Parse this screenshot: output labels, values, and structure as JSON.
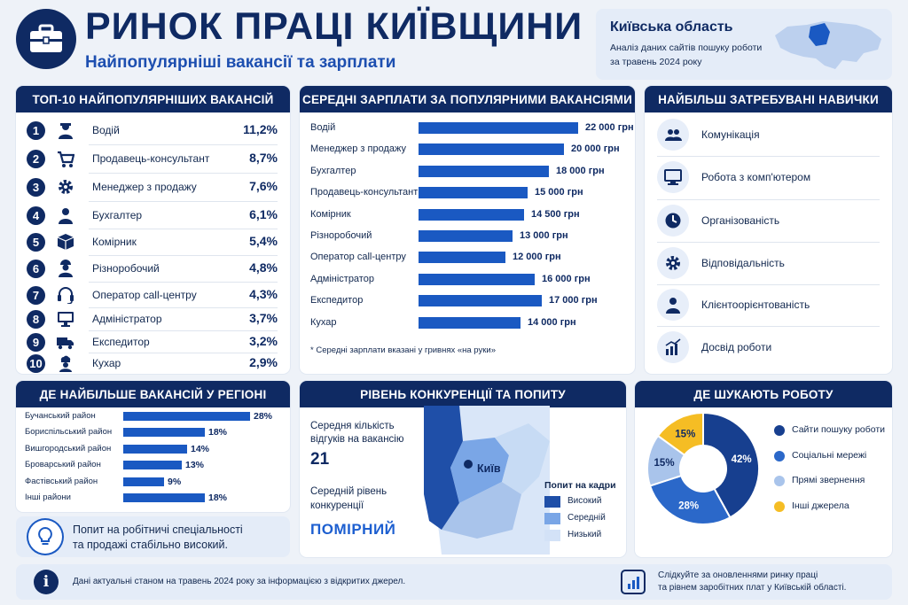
{
  "header": {
    "title": "РИНОК ПРАЦІ КИЇВЩИНИ",
    "subtitle": "Найпопулярніші вакансії та зарплати"
  },
  "region": {
    "name": "Київська область",
    "line1": "Аналіз даних сайтів пошуку роботи",
    "line2": "за травень 2024 року"
  },
  "top10": {
    "title": "ТОП-10 НАЙПОПУЛЯРНІШИХ ВАКАНСІЙ",
    "items": [
      {
        "n": "1",
        "label": "Водій",
        "pct": "11,2%",
        "icon": "driver-icon"
      },
      {
        "n": "2",
        "label": "Продавець-консультант",
        "pct": "8,7%",
        "icon": "cart-icon"
      },
      {
        "n": "3",
        "label": "Менеджер з продажу",
        "pct": "7,6%",
        "icon": "gear-icon"
      },
      {
        "n": "4",
        "label": "Бухгалтер",
        "pct": "6,1%",
        "icon": "person-icon"
      },
      {
        "n": "5",
        "label": "Комірник",
        "pct": "5,4%",
        "icon": "box-icon"
      },
      {
        "n": "6",
        "label": "Різноробочий",
        "pct": "4,8%",
        "icon": "worker-icon"
      },
      {
        "n": "7",
        "label": "Оператор call-центру",
        "pct": "4,3%",
        "icon": "headset-icon"
      },
      {
        "n": "8",
        "label": "Адміністратор",
        "pct": "3,7%",
        "icon": "monitor-icon"
      },
      {
        "n": "9",
        "label": "Експедитор",
        "pct": "3,2%",
        "icon": "truck-icon"
      },
      {
        "n": "10",
        "label": "Кухар",
        "pct": "2,9%",
        "icon": "chef-icon"
      }
    ]
  },
  "salaries": {
    "title": "СЕРЕДНІ ЗАРПЛАТИ ЗА ПОПУЛЯРНИМИ ВАКАНСІЯМИ",
    "note": "* Середні зарплати вказані у гривнях «на руки»"
  },
  "skills": {
    "title": "НАЙБІЛЬШ ЗАТРЕБУВАНІ НАВИЧКИ",
    "items": [
      {
        "label": "Комунікація",
        "icon": "people-icon"
      },
      {
        "label": "Робота з комп'ютером",
        "icon": "computer-icon"
      },
      {
        "label": "Організованість",
        "icon": "clock-icon"
      },
      {
        "label": "Відповідальність",
        "icon": "gear-icon"
      },
      {
        "label": "Клієнтоорієнтованість",
        "icon": "person-icon"
      },
      {
        "label": "Досвід роботи",
        "icon": "chart-icon"
      }
    ]
  },
  "districts": {
    "title": "ДЕ НАЙБІЛЬШЕ ВАКАНСІЙ У РЕГІОНІ"
  },
  "tip": {
    "line1": "Попит на робітничі спеціальності",
    "line2": "та продажі стабільно високий."
  },
  "competition": {
    "title": "РІВЕНЬ КОНКУРЕНЦІЇ ТА ПОПИТУ",
    "resp_label1": "Середня кількість",
    "resp_label2": "відгуків на вакансію",
    "resp_value": "21",
    "comp_label1": "Середній рівень",
    "comp_label2": "конкуренції",
    "comp_value": "ПОМІРНИЙ",
    "city": "Київ",
    "legend_title": "Попит на кадри",
    "legend": [
      {
        "label": "Високий",
        "color": "#1f4fa8"
      },
      {
        "label": "Середній",
        "color": "#7aa6e6"
      },
      {
        "label": "Низький",
        "color": "#d3e2f7"
      }
    ]
  },
  "search": {
    "title": "ДЕ ШУКАЮТЬ РОБОТУ"
  },
  "footer": {
    "info": "Дані актуальні станом на травень 2024 року за інформацією з відкритих джерел.",
    "follow1": "Слідкуйте за оновленнями ринку праці",
    "follow2": "та рівнем заробітних плат у Київській області."
  },
  "chart_data": [
    {
      "type": "bar",
      "orientation": "horizontal",
      "unit": "грн",
      "categories": [
        "Водій",
        "Менеджер з продажу",
        "Бухгалтер",
        "Продавець-консультант",
        "Комірник",
        "Різноробочий",
        "Оператор call-центру",
        "Адміністратор",
        "Експедитор",
        "Кухар"
      ],
      "values": [
        22000,
        20000,
        18000,
        15000,
        14500,
        13000,
        12000,
        16000,
        17000,
        14000
      ],
      "labels": [
        "22 000 грн",
        "20 000 грн",
        "18 000 грн",
        "15 000 грн",
        "14 500 грн",
        "13 000 грн",
        "12 000 грн",
        "16 000 грн",
        "17 000 грн",
        "14 000 грн"
      ],
      "title": "СЕРЕДНІ ЗАРПЛАТИ ЗА ПОПУЛЯРНИМИ ВАКАНСІЯМИ"
    },
    {
      "type": "bar",
      "orientation": "horizontal",
      "categories": [
        "Бучанський район",
        "Бориспільський район",
        "Вишгородський район",
        "Броварський район",
        "Фастівський район",
        "Інші райони"
      ],
      "values": [
        28,
        18,
        14,
        13,
        9,
        18
      ],
      "labels": [
        "28%",
        "18%",
        "14%",
        "13%",
        "9%",
        "18%"
      ],
      "title": "ДЕ НАЙБІЛЬШЕ ВАКАНСІЙ У РЕГІОНІ"
    },
    {
      "type": "pie",
      "donut": true,
      "categories": [
        "Сайти пошуку роботи",
        "Соціальні мережі",
        "Прямі звернення",
        "Інші джерела"
      ],
      "values": [
        42,
        28,
        15,
        15
      ],
      "labels": [
        "42%",
        "28%",
        "15%",
        "15%"
      ],
      "colors": [
        "#173f8f",
        "#2b68c9",
        "#a9c4eb",
        "#f5bd24"
      ],
      "title": "ДЕ ШУКАЮТЬ РОБОТУ"
    }
  ]
}
